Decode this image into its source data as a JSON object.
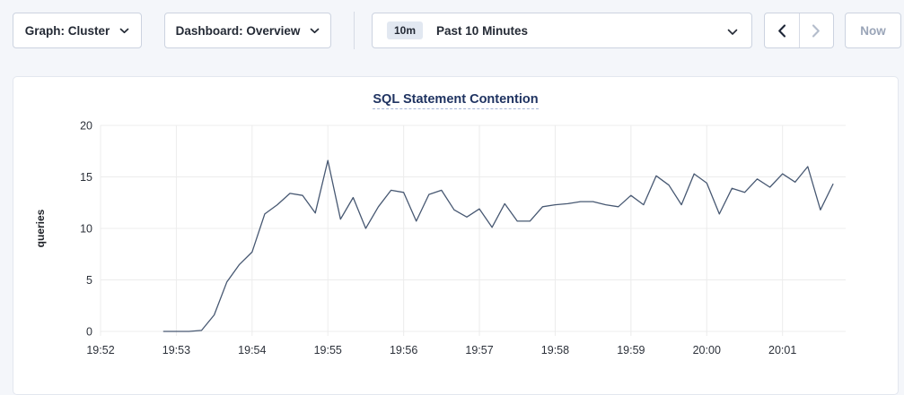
{
  "toolbar": {
    "graph_dropdown": {
      "label": "Graph: Cluster",
      "icon": "chevron-down-icon"
    },
    "dashboard_dropdown": {
      "label": "Dashboard: Overview",
      "icon": "chevron-down-icon"
    },
    "time_picker": {
      "badge": "10m",
      "label": "Past 10 Minutes",
      "icon": "chevron-down-icon"
    },
    "prev_button": {
      "icon": "chevron-left-icon",
      "enabled": true
    },
    "next_button": {
      "icon": "chevron-right-icon",
      "enabled": false
    },
    "now_button": {
      "label": "Now",
      "enabled": false
    }
  },
  "colors": {
    "page_background": "#f4f6fa",
    "panel_background": "#ffffff",
    "grid": "#ececec",
    "line": "#475872",
    "title": "#1f3361",
    "tick_text": "#2c313a",
    "disabled_text": "#9aa5b8"
  },
  "chart_data": {
    "type": "line",
    "title": "SQL Statement Contention",
    "xlabel": "",
    "ylabel": "queries",
    "ylim": [
      0,
      20
    ],
    "y_ticks": [
      0,
      5,
      10,
      15,
      20
    ],
    "x_ticks": [
      "19:52",
      "19:53",
      "19:54",
      "19:55",
      "19:56",
      "19:57",
      "19:58",
      "19:59",
      "20:00",
      "20:01"
    ],
    "x_axis_start": "19:52:00",
    "x_axis_end": "20:01:50",
    "grid": true,
    "legend_position": "none",
    "series": [
      {
        "name": "queries",
        "color": "#475872",
        "points": [
          [
            "19:52:50",
            0
          ],
          [
            "19:53:00",
            0
          ],
          [
            "19:53:10",
            0
          ],
          [
            "19:53:20",
            0.1
          ],
          [
            "19:53:30",
            1.6
          ],
          [
            "19:53:40",
            4.8
          ],
          [
            "19:53:50",
            6.5
          ],
          [
            "19:54:00",
            7.7
          ],
          [
            "19:54:10",
            11.4
          ],
          [
            "19:54:20",
            12.3
          ],
          [
            "19:54:30",
            13.4
          ],
          [
            "19:54:40",
            13.2
          ],
          [
            "19:54:50",
            11.5
          ],
          [
            "19:55:00",
            16.6
          ],
          [
            "19:55:10",
            10.9
          ],
          [
            "19:55:20",
            13.0
          ],
          [
            "19:55:30",
            10.0
          ],
          [
            "19:55:40",
            12.1
          ],
          [
            "19:55:50",
            13.7
          ],
          [
            "19:56:00",
            13.5
          ],
          [
            "19:56:10",
            10.7
          ],
          [
            "19:56:20",
            13.3
          ],
          [
            "19:56:30",
            13.7
          ],
          [
            "19:56:40",
            11.8
          ],
          [
            "19:56:50",
            11.1
          ],
          [
            "19:57:00",
            11.9
          ],
          [
            "19:57:10",
            10.1
          ],
          [
            "19:57:20",
            12.4
          ],
          [
            "19:57:30",
            10.7
          ],
          [
            "19:57:40",
            10.7
          ],
          [
            "19:57:50",
            12.1
          ],
          [
            "19:58:00",
            12.3
          ],
          [
            "19:58:10",
            12.4
          ],
          [
            "19:58:20",
            12.6
          ],
          [
            "19:58:30",
            12.6
          ],
          [
            "19:58:40",
            12.3
          ],
          [
            "19:58:50",
            12.1
          ],
          [
            "19:59:00",
            13.2
          ],
          [
            "19:59:10",
            12.3
          ],
          [
            "19:59:20",
            15.1
          ],
          [
            "19:59:30",
            14.2
          ],
          [
            "19:59:40",
            12.3
          ],
          [
            "19:59:50",
            15.3
          ],
          [
            "20:00:00",
            14.4
          ],
          [
            "20:00:10",
            11.4
          ],
          [
            "20:00:20",
            13.9
          ],
          [
            "20:00:30",
            13.5
          ],
          [
            "20:00:40",
            14.8
          ],
          [
            "20:00:50",
            14.0
          ],
          [
            "20:01:00",
            15.3
          ],
          [
            "20:01:10",
            14.5
          ],
          [
            "20:01:20",
            16.0
          ],
          [
            "20:01:30",
            11.8
          ],
          [
            "20:01:40",
            14.3
          ]
        ]
      }
    ]
  }
}
